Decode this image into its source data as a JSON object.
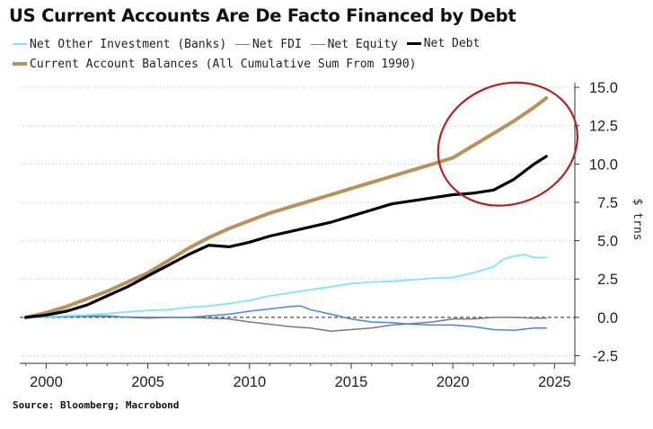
{
  "chart_data": {
    "type": "line",
    "title": "US Current Accounts Are De Facto Financed by Debt",
    "ylabel": "$ trns",
    "xlabel": "",
    "xlim": [
      1998.7,
      2026.0
    ],
    "ylim": [
      -3.0,
      15.3
    ],
    "x_ticks": [
      2000,
      2005,
      2010,
      2015,
      2020,
      2025
    ],
    "x_tick_labels": [
      "2000",
      "2005",
      "2010",
      "2015",
      "2020",
      "2025"
    ],
    "y_ticks": [
      15.0,
      12.5,
      10.0,
      7.5,
      5.0,
      2.5,
      0.0,
      -2.5
    ],
    "y_tick_labels": [
      "15.0",
      "12.5",
      "10.0",
      "7.5",
      "5.0",
      "2.5",
      "0.0",
      "-2.5"
    ],
    "y_axis_side": "right",
    "grid": "horizontal dotted",
    "zero_line": "dashed",
    "legend_position": "top",
    "series": [
      {
        "name": "Net Other Investment (Banks)",
        "color": "#7ee8f0",
        "x": [
          1999,
          2000,
          2001,
          2002,
          2003,
          2004,
          2005,
          2006,
          2007,
          2008,
          2009,
          2010,
          2011,
          2012,
          2013,
          2014,
          2015,
          2016,
          2017,
          2018,
          2019,
          2020,
          2021,
          2022,
          2022.5,
          2023,
          2023.5,
          2024,
          2024.6
        ],
        "values": [
          0.0,
          0.05,
          0.1,
          0.15,
          0.25,
          0.35,
          0.45,
          0.5,
          0.65,
          0.75,
          0.9,
          1.1,
          1.4,
          1.6,
          1.8,
          2.0,
          2.2,
          2.3,
          2.35,
          2.45,
          2.55,
          2.6,
          2.9,
          3.3,
          3.8,
          4.0,
          4.1,
          3.9,
          3.9
        ]
      },
      {
        "name": "Net FDI",
        "color": "#7a7a7a",
        "x": [
          1999,
          2001,
          2003,
          2005,
          2007,
          2009,
          2010,
          2011,
          2012,
          2013,
          2014,
          2015,
          2016,
          2017,
          2018,
          2019,
          2020,
          2021,
          2022,
          2023,
          2024,
          2024.6
        ],
        "values": [
          0.0,
          0.05,
          0.05,
          0.0,
          0.0,
          -0.1,
          -0.3,
          -0.45,
          -0.6,
          -0.7,
          -0.9,
          -0.8,
          -0.7,
          -0.5,
          -0.4,
          -0.3,
          -0.1,
          -0.1,
          0.0,
          0.0,
          -0.05,
          -0.05
        ]
      },
      {
        "name": "Net Equity",
        "color": "#4a86e0",
        "x": [
          1999,
          2001,
          2003,
          2004,
          2005,
          2006,
          2007,
          2008,
          2009,
          2010,
          2011,
          2012,
          2012.5,
          2013,
          2014,
          2015,
          2016,
          2017,
          2018,
          2019,
          2020,
          2021,
          2022,
          2023,
          2024,
          2024.6
        ],
        "values": [
          0.0,
          0.05,
          0.1,
          0.0,
          -0.05,
          0.0,
          0.0,
          0.1,
          0.2,
          0.4,
          0.55,
          0.7,
          0.75,
          0.5,
          0.2,
          -0.1,
          -0.3,
          -0.35,
          -0.45,
          -0.5,
          -0.5,
          -0.6,
          -0.8,
          -0.85,
          -0.7,
          -0.7
        ]
      },
      {
        "name": "Net Debt",
        "color": "#000000",
        "x": [
          1999,
          2000,
          2001,
          2002,
          2003,
          2004,
          2005,
          2006,
          2007,
          2008,
          2009,
          2010,
          2011,
          2012,
          2013,
          2014,
          2015,
          2016,
          2017,
          2018,
          2019,
          2020,
          2021,
          2022,
          2023,
          2024,
          2024.6
        ],
        "values": [
          0.0,
          0.15,
          0.4,
          0.8,
          1.4,
          2.0,
          2.7,
          3.4,
          4.1,
          4.7,
          4.6,
          4.9,
          5.3,
          5.6,
          5.9,
          6.2,
          6.6,
          7.0,
          7.4,
          7.6,
          7.8,
          8.0,
          8.1,
          8.3,
          9.0,
          10.0,
          10.5
        ]
      },
      {
        "name": "Current Account Balances (All Cumulative Sum From 1990)",
        "color": "#b8925a",
        "x": [
          1999,
          2000,
          2001,
          2002,
          2003,
          2004,
          2005,
          2006,
          2007,
          2008,
          2009,
          2010,
          2011,
          2012,
          2013,
          2014,
          2015,
          2016,
          2017,
          2018,
          2019,
          2020,
          2021,
          2022,
          2023,
          2024,
          2024.6
        ],
        "values": [
          0.0,
          0.3,
          0.7,
          1.2,
          1.7,
          2.3,
          2.9,
          3.7,
          4.5,
          5.2,
          5.8,
          6.3,
          6.8,
          7.2,
          7.6,
          8.0,
          8.4,
          8.8,
          9.2,
          9.6,
          10.0,
          10.4,
          11.2,
          12.0,
          12.8,
          13.7,
          14.3
        ]
      }
    ],
    "annotations": [
      {
        "type": "ellipse",
        "color": "#b22222",
        "center": {
          "x": 2022.7,
          "y": 11.3
        },
        "rx_years": 3.5,
        "ry_values": 3.9
      }
    ]
  },
  "legend": {
    "items": [
      {
        "label": "Net Other Investment (Banks)",
        "color": "#7ee8f0",
        "weight": 2
      },
      {
        "label": "Net FDI",
        "color": "#7a7a7a",
        "weight": 1.5
      },
      {
        "label": "Net Equity",
        "color": "#4a86e0",
        "weight": 1.5
      },
      {
        "label": "Net Debt",
        "color": "#000000",
        "weight": 3
      },
      {
        "label": "Current Account Balances (All Cumulative Sum From 1990)",
        "color": "#b8925a",
        "weight": 4
      }
    ]
  },
  "source": "Source: Bloomberg; Macrobond"
}
